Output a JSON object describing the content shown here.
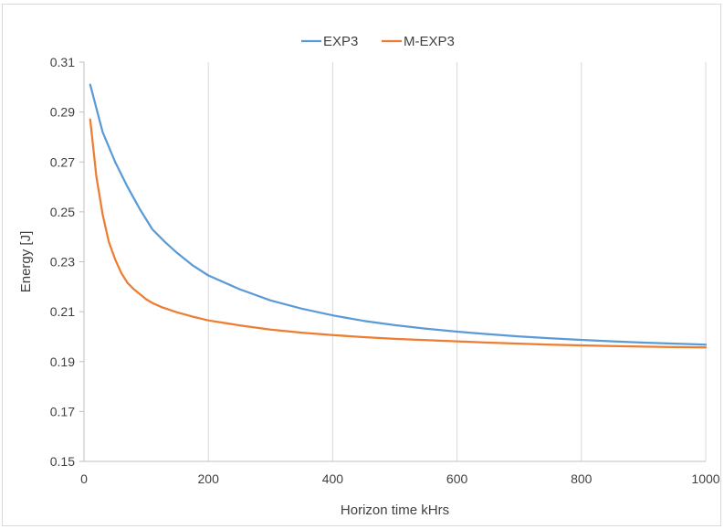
{
  "chart_data": {
    "type": "line",
    "title": "",
    "xlabel": "Horizon time  kHrs",
    "ylabel": "Energy  [J]",
    "xlim": [
      0,
      1000
    ],
    "ylim": [
      0.15,
      0.31
    ],
    "xticks": [
      0,
      200,
      400,
      600,
      800,
      1000
    ],
    "yticks": [
      0.15,
      0.17,
      0.19,
      0.21,
      0.23,
      0.25,
      0.27,
      0.29,
      0.31
    ],
    "xtick_labels": [
      "0",
      "200",
      "400",
      "600",
      "800",
      "1000"
    ],
    "ytick_labels": [
      "0.15",
      "0.17",
      "0.19",
      "0.21",
      "0.23",
      "0.25",
      "0.27",
      "0.29",
      "0.31"
    ],
    "grid": "vertical",
    "legend": "top-center",
    "series": [
      {
        "name": "EXP3",
        "color": "#5b9bd5",
        "x": [
          10,
          30,
          50,
          70,
          90,
          110,
          130,
          150,
          175,
          200,
          250,
          300,
          350,
          400,
          450,
          500,
          550,
          600,
          650,
          700,
          750,
          800,
          850,
          900,
          950,
          1000
        ],
        "y": [
          0.301,
          0.282,
          0.27,
          0.26,
          0.251,
          0.243,
          0.238,
          0.2335,
          0.2285,
          0.2245,
          0.219,
          0.2145,
          0.2112,
          0.2085,
          0.2063,
          0.2046,
          0.2032,
          0.202,
          0.201,
          0.2001,
          0.1993,
          0.1987,
          0.1981,
          0.1976,
          0.1972,
          0.1968
        ]
      },
      {
        "name": "M-EXP3",
        "color": "#ed7d31",
        "x": [
          10,
          20,
          30,
          40,
          50,
          60,
          70,
          80,
          90,
          100,
          110,
          125,
          150,
          175,
          200,
          250,
          300,
          350,
          400,
          450,
          500,
          550,
          600,
          650,
          700,
          750,
          800,
          850,
          900,
          950,
          1000
        ],
        "y": [
          0.287,
          0.264,
          0.249,
          0.238,
          0.231,
          0.2255,
          0.2215,
          0.219,
          0.217,
          0.215,
          0.2135,
          0.2118,
          0.2097,
          0.208,
          0.2065,
          0.2045,
          0.2028,
          0.2016,
          0.2006,
          0.1998,
          0.1991,
          0.1986,
          0.1981,
          0.1976,
          0.1972,
          0.1968,
          0.1965,
          0.1962,
          0.196,
          0.1958,
          0.1957
        ]
      }
    ]
  }
}
